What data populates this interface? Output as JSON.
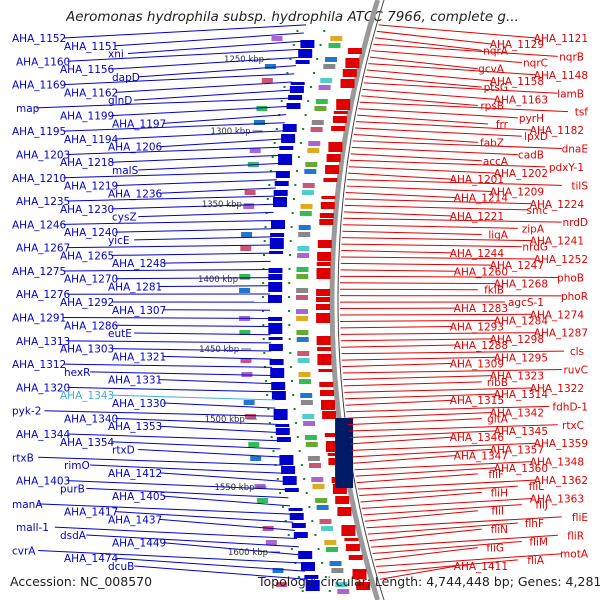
{
  "map": {
    "title": "Aeromonas hydrophila subsp. hydrophila ATCC 7966, complete g...",
    "accession": "Accession: NC_008570",
    "topology": "Topology: circular; Length: 4,744,448 bp; Genes: 4,281",
    "colors": {
      "forward": "#0000cc",
      "reverse": "#e00000",
      "highlight": "#44aadd",
      "backbone": "#888888",
      "tick": "#118811"
    },
    "kbp_ticks": [
      "1250 kbp",
      "1300 kbp",
      "1350 kbp",
      "1400 kbp",
      "1450 kbp",
      "1500 kbp",
      "1550 kbp",
      "1600 kbp"
    ],
    "forward_labels": [
      "AHA_1152",
      "AHA_1151",
      "xni",
      "AHA_1160",
      "AHA_1156",
      "dapD",
      "AHA_1169",
      "AHA_1162",
      "glnD",
      "map",
      "AHA_1199",
      "AHA_1197",
      "AHA_1195",
      "AHA_1194",
      "AHA_1206",
      "AHA_1203",
      "AHA_1218",
      "malS",
      "AHA_1210",
      "AHA_1219",
      "AHA_1236",
      "AHA_1235",
      "AHA_1230",
      "cysZ",
      "AHA_1246",
      "AHA_1240",
      "yicE",
      "AHA_1267",
      "AHA_1265",
      "AHA_1248",
      "AHA_1275",
      "AHA_1270",
      "AHA_1281",
      "AHA_1276",
      "AHA_1292",
      "AHA_1307",
      "AHA_1291",
      "AHA_1286",
      "eutE",
      "AHA_1313",
      "AHA_1303",
      "AHA_1321",
      "AHA_1312",
      "hexR",
      "AHA_1331",
      "AHA_1320",
      "AHA_1343",
      "AHA_1330",
      "pyk-2",
      "AHA_1340",
      "AHA_1353",
      "AHA_1344",
      "AHA_1354",
      "rtxD",
      "rtxB",
      "rimO",
      "AHA_1412",
      "AHA_1403",
      "purB",
      "AHA_1405",
      "manA",
      "AHA_1417",
      "AHA_1437",
      "mall-1",
      "dsdA",
      "AHA_1449",
      "cvrA",
      "AHA_1474",
      "dcuB"
    ],
    "reverse_labels": [
      "AHA_1121",
      "AHA_1129",
      "nqrA",
      "nqrB",
      "nqrC",
      "gcvA",
      "AHA_1148",
      "AHA_1158",
      "ptsG",
      "lamB",
      "AHA_1163",
      "rpsB",
      "tsf",
      "pyrH",
      "frr",
      "AHA_1182",
      "lpxD",
      "fabZ",
      "dnaE",
      "cadB",
      "accA",
      "pdxY-1",
      "AHA_1202",
      "AHA_1201",
      "tilS",
      "AHA_1209",
      "AHA_1214",
      "AHA_1224",
      "smc",
      "AHA_1221",
      "nrdD",
      "zipA",
      "ligA",
      "AHA_1241",
      "nrdG",
      "AHA_1244",
      "AHA_1252",
      "AHA_1247",
      "AHA_1260",
      "phoB",
      "AHA_1268",
      "fklB",
      "phoR",
      "agcS-1",
      "AHA_1283",
      "AHA_1274",
      "AHA_1284",
      "AHA_1293",
      "AHA_1287",
      "AHA_1298",
      "AHA_1288",
      "cls",
      "AHA_1295",
      "AHA_1309",
      "ruvC",
      "AHA_1323",
      "ribB",
      "AHA_1322",
      "AHA_1314",
      "AHA_1315",
      "fdhD-1",
      "AHA_1342",
      "gltA",
      "rtxC",
      "AHA_1345",
      "AHA_1346",
      "AHA_1359",
      "AHA_1357",
      "AHA_1347",
      "AHA_1348",
      "AHA_1360",
      "fliF",
      "AHA_1362",
      "fliL",
      "fliH",
      "AHA_1363",
      "fliJ",
      "fliI",
      "fliE",
      "flhF",
      "fliN",
      "fliR",
      "fliM",
      "fliG",
      "motA",
      "fliA",
      "AHA_1411"
    ]
  }
}
